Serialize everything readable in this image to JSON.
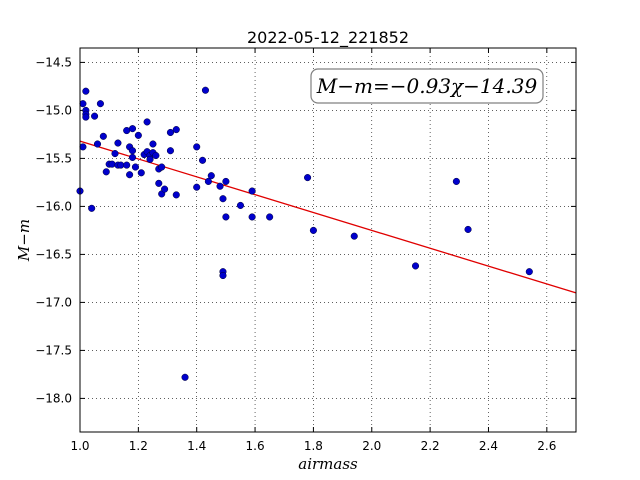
{
  "chart_data": {
    "type": "scatter",
    "title": "2022-05-12_221852",
    "xlabel": "airmass",
    "ylabel": "M−m",
    "xlim": [
      1.0,
      2.7
    ],
    "ylim": [
      -18.35,
      -14.35
    ],
    "xticks": [
      1.0,
      1.2,
      1.4,
      1.6,
      1.8,
      2.0,
      2.2,
      2.4,
      2.6
    ],
    "xtick_labels": [
      "1.0",
      "1.2",
      "1.4",
      "1.6",
      "1.8",
      "2.0",
      "2.2",
      "2.4",
      "2.6"
    ],
    "yticks": [
      -14.5,
      -15.0,
      -15.5,
      -16.0,
      -16.5,
      -17.0,
      -17.5,
      -18.0
    ],
    "ytick_labels": [
      "−14.5",
      "−15.0",
      "−15.5",
      "−16.0",
      "−16.5",
      "−17.0",
      "−17.5",
      "−18.0"
    ],
    "grid": true,
    "annotation": "M−m=−0.93χ−14.39",
    "fit": {
      "slope": -0.93,
      "intercept": -14.39,
      "color": "#e00000"
    },
    "point_color": "#0000cc",
    "points": [
      {
        "x": 1.0,
        "y": -15.84
      },
      {
        "x": 1.01,
        "y": -14.93
      },
      {
        "x": 1.01,
        "y": -15.38
      },
      {
        "x": 1.02,
        "y": -14.8
      },
      {
        "x": 1.02,
        "y": -15.0
      },
      {
        "x": 1.02,
        "y": -15.04
      },
      {
        "x": 1.02,
        "y": -15.07
      },
      {
        "x": 1.04,
        "y": -16.02
      },
      {
        "x": 1.05,
        "y": -15.06
      },
      {
        "x": 1.06,
        "y": -15.35
      },
      {
        "x": 1.07,
        "y": -14.93
      },
      {
        "x": 1.08,
        "y": -15.27
      },
      {
        "x": 1.09,
        "y": -15.64
      },
      {
        "x": 1.1,
        "y": -15.56
      },
      {
        "x": 1.11,
        "y": -15.56
      },
      {
        "x": 1.12,
        "y": -15.45
      },
      {
        "x": 1.13,
        "y": -15.57
      },
      {
        "x": 1.13,
        "y": -15.34
      },
      {
        "x": 1.14,
        "y": -15.57
      },
      {
        "x": 1.16,
        "y": -15.57
      },
      {
        "x": 1.16,
        "y": -15.21
      },
      {
        "x": 1.17,
        "y": -15.38
      },
      {
        "x": 1.17,
        "y": -15.67
      },
      {
        "x": 1.18,
        "y": -15.19
      },
      {
        "x": 1.18,
        "y": -15.42
      },
      {
        "x": 1.18,
        "y": -15.49
      },
      {
        "x": 1.19,
        "y": -15.59
      },
      {
        "x": 1.2,
        "y": -15.26
      },
      {
        "x": 1.21,
        "y": -15.65
      },
      {
        "x": 1.22,
        "y": -15.46
      },
      {
        "x": 1.23,
        "y": -15.12
      },
      {
        "x": 1.23,
        "y": -15.43
      },
      {
        "x": 1.24,
        "y": -15.47
      },
      {
        "x": 1.24,
        "y": -15.51
      },
      {
        "x": 1.25,
        "y": -15.35
      },
      {
        "x": 1.25,
        "y": -15.44
      },
      {
        "x": 1.26,
        "y": -15.47
      },
      {
        "x": 1.27,
        "y": -15.61
      },
      {
        "x": 1.27,
        "y": -15.76
      },
      {
        "x": 1.28,
        "y": -15.59
      },
      {
        "x": 1.28,
        "y": -15.87
      },
      {
        "x": 1.29,
        "y": -15.82
      },
      {
        "x": 1.31,
        "y": -15.23
      },
      {
        "x": 1.31,
        "y": -15.42
      },
      {
        "x": 1.33,
        "y": -15.2
      },
      {
        "x": 1.33,
        "y": -15.88
      },
      {
        "x": 1.36,
        "y": -17.78
      },
      {
        "x": 1.4,
        "y": -15.38
      },
      {
        "x": 1.4,
        "y": -15.8
      },
      {
        "x": 1.42,
        "y": -15.52
      },
      {
        "x": 1.43,
        "y": -14.79
      },
      {
        "x": 1.44,
        "y": -15.74
      },
      {
        "x": 1.45,
        "y": -15.68
      },
      {
        "x": 1.48,
        "y": -15.79
      },
      {
        "x": 1.49,
        "y": -16.68
      },
      {
        "x": 1.49,
        "y": -16.72
      },
      {
        "x": 1.49,
        "y": -15.92
      },
      {
        "x": 1.5,
        "y": -15.74
      },
      {
        "x": 1.5,
        "y": -16.11
      },
      {
        "x": 1.55,
        "y": -15.99
      },
      {
        "x": 1.59,
        "y": -15.84
      },
      {
        "x": 1.59,
        "y": -16.11
      },
      {
        "x": 1.65,
        "y": -16.11
      },
      {
        "x": 1.78,
        "y": -15.7
      },
      {
        "x": 1.8,
        "y": -16.25
      },
      {
        "x": 1.94,
        "y": -16.31
      },
      {
        "x": 2.15,
        "y": -16.62
      },
      {
        "x": 2.29,
        "y": -15.74
      },
      {
        "x": 2.33,
        "y": -16.24
      },
      {
        "x": 2.54,
        "y": -16.68
      }
    ]
  }
}
